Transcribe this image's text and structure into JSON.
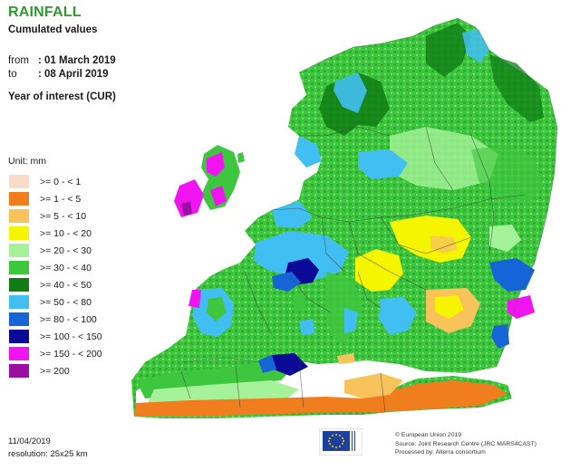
{
  "header": {
    "title": "RAINFALL",
    "subtitle": "Cumulated values",
    "from_label": "from",
    "from_value": ": 01 March 2019",
    "to_label": "to",
    "to_value": ": 08 April 2019",
    "year": "Year of interest (CUR)"
  },
  "legend": {
    "unit": "Unit:  mm",
    "items": [
      {
        "label": ">= 0 - < 1",
        "color": "#f8dcc8"
      },
      {
        "label": ">= 1 - < 5",
        "color": "#f07d1e"
      },
      {
        "label": ">= 5 - < 10",
        "color": "#f9c35b"
      },
      {
        "label": ">= 10 - < 20",
        "color": "#f5f500"
      },
      {
        "label": ">= 20 - < 30",
        "color": "#a6f29a"
      },
      {
        "label": ">= 30 - < 40",
        "color": "#3fc63f"
      },
      {
        "label": ">= 40 - < 50",
        "color": "#0f7d14"
      },
      {
        "label": ">= 50 - < 80",
        "color": "#41bff2"
      },
      {
        "label": ">= 80 - < 100",
        "color": "#1565d8"
      },
      {
        "label": ">= 100 - < 150",
        "color": "#0a0a96"
      },
      {
        "label": ">= 150 - < 200",
        "color": "#f015f0"
      },
      {
        "label": ">= 200",
        "color": "#9a0ea3"
      }
    ]
  },
  "footer": {
    "date": "11/04/2019",
    "resolution": "resolution:  25x25 km",
    "credits": [
      "© European Union 2019",
      "Source: Joint Research Centre (JRC MARS4CAST)",
      "Processed by: Alterra consortium"
    ]
  },
  "map": {
    "sea_color": "#ffffff",
    "border_color": "#333333"
  }
}
